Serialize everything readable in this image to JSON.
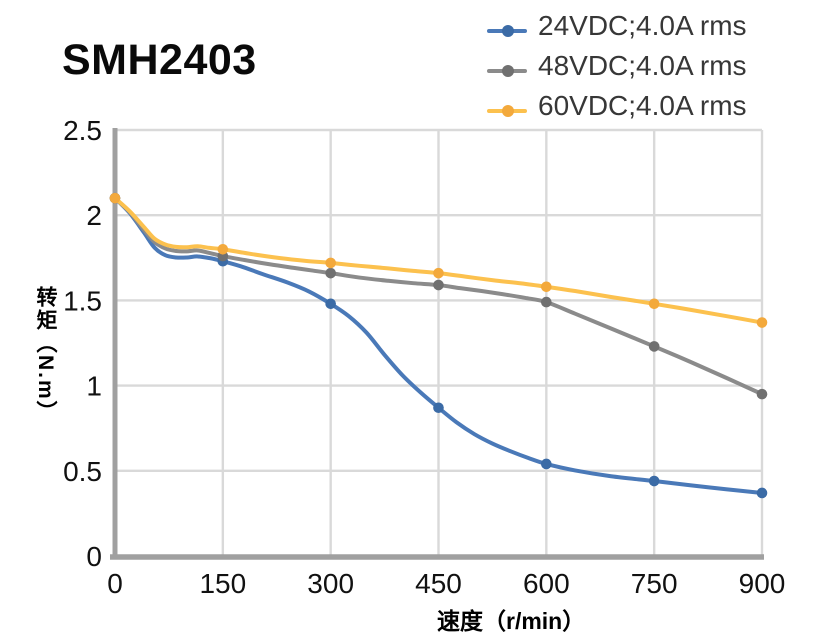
{
  "page": {
    "title": "SMH2403"
  },
  "chart_data": {
    "type": "line",
    "title": "SMH2403",
    "xlabel": "速度（r/min）",
    "ylabel": "转矩（N.m）",
    "xlim": [
      0,
      900
    ],
    "ylim": [
      0,
      2.5
    ],
    "xticks": [
      0,
      150,
      300,
      450,
      600,
      750,
      900
    ],
    "xtick_labels": [
      "0",
      "150",
      "300",
      "450",
      "600",
      "750",
      "900"
    ],
    "yticks": [
      0,
      0.5,
      1,
      1.5,
      2,
      2.5
    ],
    "ytick_labels": [
      "0",
      "0.5",
      "1",
      "1.5",
      "2",
      "2.5"
    ],
    "grid": true,
    "legend_position": "top-right",
    "colors": {
      "grid": "#d9d9d9",
      "axis": "#a0a0a0",
      "tick_text": "#111111",
      "legend_text": "#373737",
      "title_text": "#0a0a0a"
    },
    "categories": [
      0,
      150,
      300,
      450,
      600,
      750,
      900
    ],
    "series": [
      {
        "name": "24VDC;4.0A rms",
        "color": "#4a79b8",
        "marker_color": "#3b6ba6",
        "values": [
          2.1,
          1.73,
          1.48,
          0.87,
          0.54,
          0.44,
          0.37
        ],
        "shape": [
          [
            0,
            2.1
          ],
          [
            20,
            2.015
          ],
          [
            40,
            1.9
          ],
          [
            55,
            1.81
          ],
          [
            70,
            1.765
          ],
          [
            85,
            1.752
          ],
          [
            100,
            1.752
          ],
          [
            115,
            1.758
          ],
          [
            132,
            1.748
          ],
          [
            150,
            1.73
          ],
          [
            175,
            1.7
          ],
          [
            205,
            1.655
          ],
          [
            240,
            1.605
          ],
          [
            270,
            1.552
          ],
          [
            300,
            1.48
          ],
          [
            325,
            1.408
          ],
          [
            350,
            1.31
          ],
          [
            375,
            1.18
          ],
          [
            400,
            1.06
          ],
          [
            425,
            0.96
          ],
          [
            450,
            0.87
          ],
          [
            475,
            0.785
          ],
          [
            500,
            0.715
          ],
          [
            525,
            0.66
          ],
          [
            550,
            0.615
          ],
          [
            575,
            0.575
          ],
          [
            600,
            0.54
          ],
          [
            640,
            0.502
          ],
          [
            690,
            0.468
          ],
          [
            750,
            0.44
          ],
          [
            800,
            0.415
          ],
          [
            850,
            0.392
          ],
          [
            900,
            0.37
          ]
        ]
      },
      {
        "name": "48VDC;4.0A rms",
        "color": "#8b8b8b",
        "marker_color": "#707070",
        "values": [
          2.1,
          1.76,
          1.66,
          1.59,
          1.49,
          1.23,
          0.95
        ],
        "shape": [
          [
            0,
            2.1
          ],
          [
            20,
            2.02
          ],
          [
            40,
            1.915
          ],
          [
            55,
            1.843
          ],
          [
            70,
            1.805
          ],
          [
            85,
            1.79
          ],
          [
            100,
            1.788
          ],
          [
            115,
            1.793
          ],
          [
            132,
            1.778
          ],
          [
            150,
            1.76
          ],
          [
            180,
            1.737
          ],
          [
            215,
            1.712
          ],
          [
            250,
            1.69
          ],
          [
            275,
            1.675
          ],
          [
            300,
            1.66
          ],
          [
            340,
            1.634
          ],
          [
            380,
            1.615
          ],
          [
            415,
            1.601
          ],
          [
            450,
            1.59
          ],
          [
            480,
            1.572
          ],
          [
            510,
            1.555
          ],
          [
            540,
            1.536
          ],
          [
            570,
            1.515
          ],
          [
            600,
            1.49
          ],
          [
            640,
            1.422
          ],
          [
            690,
            1.335
          ],
          [
            750,
            1.23
          ],
          [
            800,
            1.14
          ],
          [
            850,
            1.046
          ],
          [
            900,
            0.95
          ]
        ]
      },
      {
        "name": "60VDC;4.0A rms",
        "color": "#fcc14e",
        "marker_color": "#f3a93c",
        "values": [
          2.1,
          1.8,
          1.72,
          1.66,
          1.58,
          1.48,
          1.37
        ],
        "shape": [
          [
            0,
            2.1
          ],
          [
            20,
            2.025
          ],
          [
            40,
            1.932
          ],
          [
            55,
            1.862
          ],
          [
            70,
            1.828
          ],
          [
            85,
            1.814
          ],
          [
            100,
            1.812
          ],
          [
            115,
            1.818
          ],
          [
            132,
            1.808
          ],
          [
            150,
            1.8
          ],
          [
            190,
            1.772
          ],
          [
            230,
            1.748
          ],
          [
            265,
            1.732
          ],
          [
            300,
            1.72
          ],
          [
            340,
            1.703
          ],
          [
            380,
            1.688
          ],
          [
            415,
            1.673
          ],
          [
            450,
            1.66
          ],
          [
            490,
            1.638
          ],
          [
            530,
            1.616
          ],
          [
            565,
            1.6
          ],
          [
            600,
            1.58
          ],
          [
            640,
            1.555
          ],
          [
            690,
            1.52
          ],
          [
            750,
            1.48
          ],
          [
            800,
            1.445
          ],
          [
            850,
            1.408
          ],
          [
            900,
            1.37
          ]
        ]
      }
    ]
  }
}
